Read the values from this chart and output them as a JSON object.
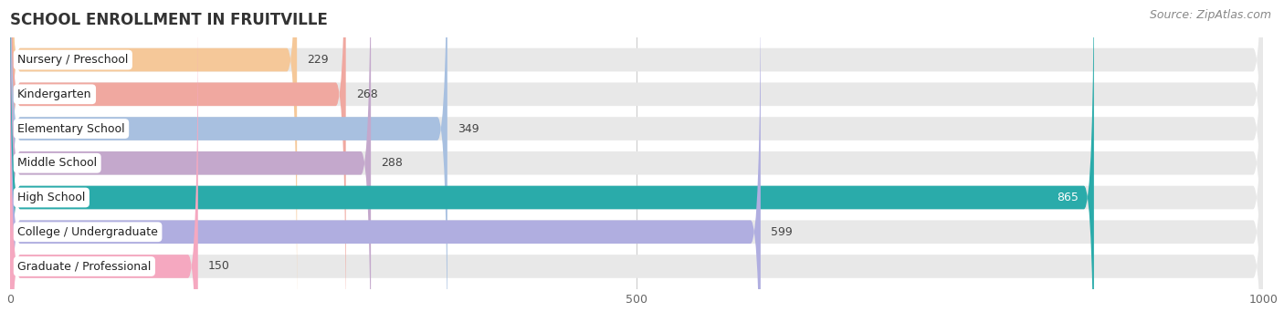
{
  "title": "SCHOOL ENROLLMENT IN FRUITVILLE",
  "source": "Source: ZipAtlas.com",
  "categories": [
    "Nursery / Preschool",
    "Kindergarten",
    "Elementary School",
    "Middle School",
    "High School",
    "College / Undergraduate",
    "Graduate / Professional"
  ],
  "values": [
    229,
    268,
    349,
    288,
    865,
    599,
    150
  ],
  "bar_colors": [
    "#f5c899",
    "#f0a8a0",
    "#a8c0e0",
    "#c4a8cc",
    "#2aabaa",
    "#b0aee0",
    "#f5a8c0"
  ],
  "bar_bg_color": "#e8e8e8",
  "xlim": [
    0,
    1000
  ],
  "xticks": [
    0,
    500,
    1000
  ],
  "title_fontsize": 12,
  "source_fontsize": 9,
  "label_fontsize": 9,
  "value_fontsize": 9,
  "bar_height": 0.68,
  "figsize": [
    14.06,
    3.42
  ],
  "dpi": 100
}
